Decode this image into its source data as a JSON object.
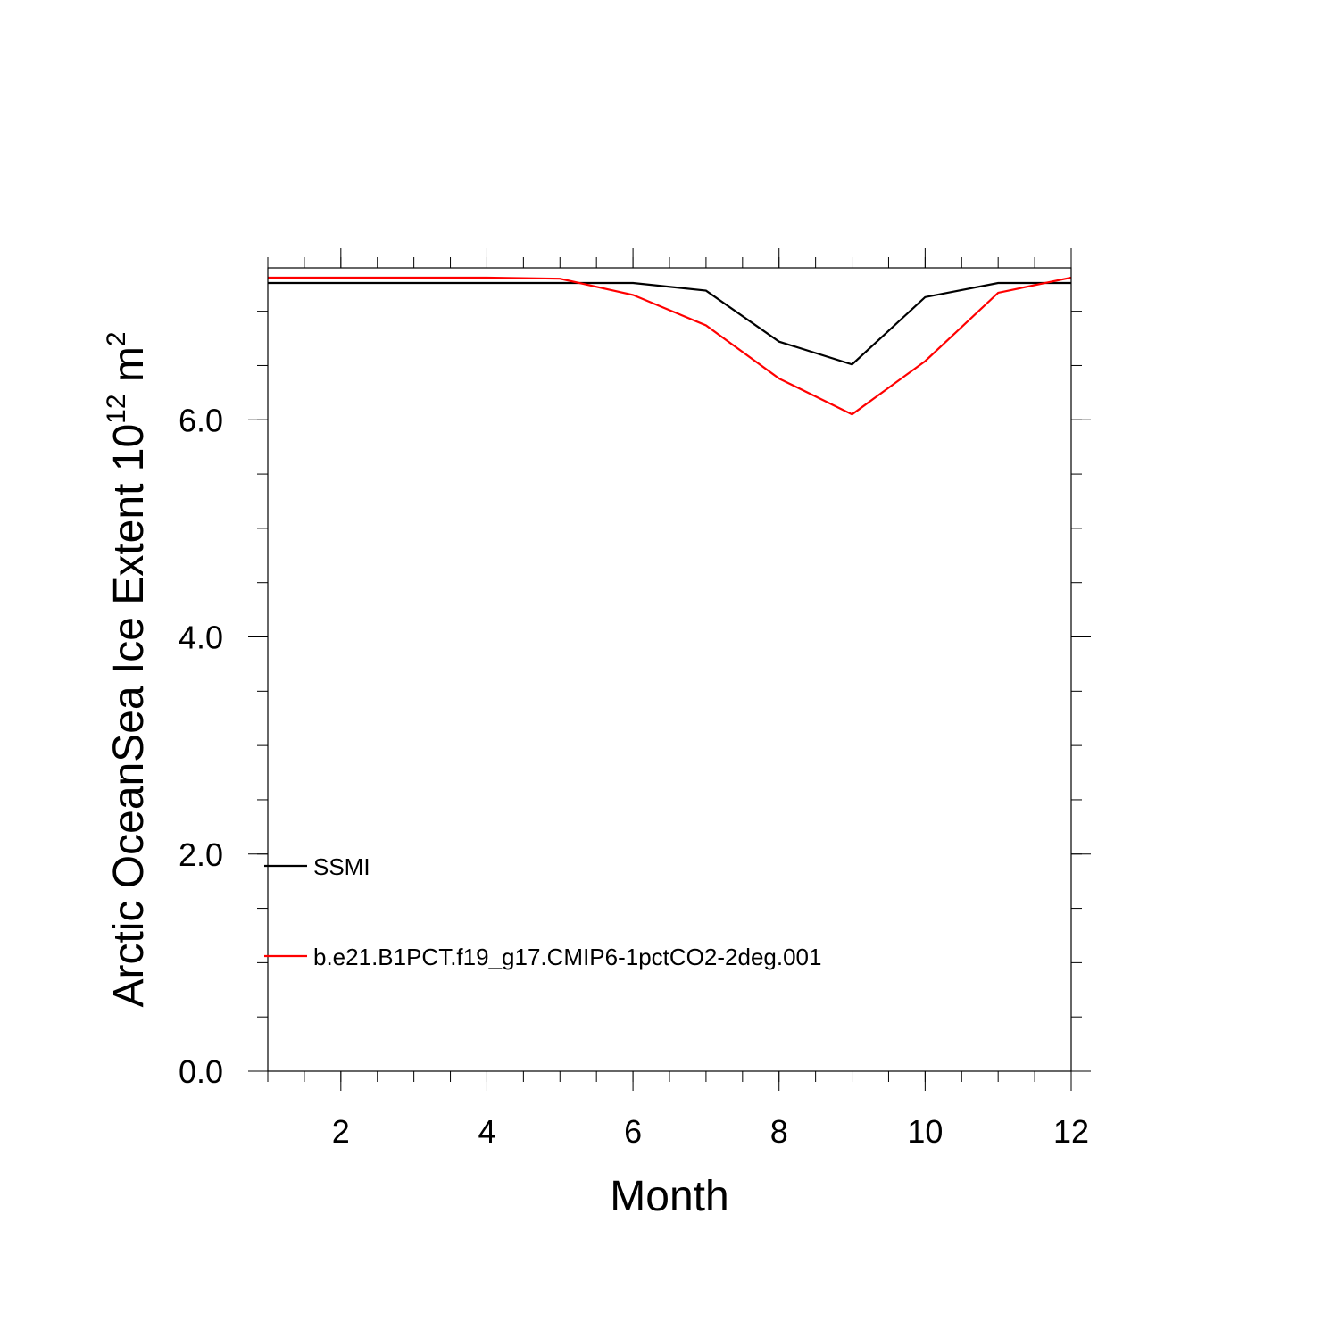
{
  "chart_data": {
    "type": "line",
    "xlabel": "Month",
    "ylabel": {
      "prefix": "Arctic OceanSea Ice Extent 10",
      "exponent": "12",
      "unit": " m",
      "unit_exponent": "2"
    },
    "xlim": [
      1,
      12
    ],
    "ylim": [
      0,
      7.4
    ],
    "x_ticks": [
      2,
      4,
      6,
      8,
      10,
      12
    ],
    "x_tick_labels": [
      "2",
      "4",
      "6",
      "8",
      "10",
      "12"
    ],
    "y_ticks": [
      0,
      2,
      4,
      6
    ],
    "y_tick_labels": [
      "0.0",
      "2.0",
      "4.0",
      "6.0"
    ],
    "grid": false,
    "legend_placement": "lower-left inside",
    "x": [
      1,
      2,
      3,
      4,
      5,
      6,
      7,
      8,
      9,
      10,
      11,
      12
    ],
    "series": [
      {
        "name": "SSMI",
        "color": "#000000",
        "values": [
          7.26,
          7.26,
          7.26,
          7.26,
          7.26,
          7.26,
          7.19,
          6.72,
          6.51,
          7.13,
          7.26,
          7.26
        ]
      },
      {
        "name": "b.e21.B1PCT.f19_g17.CMIP6-1pctCO2-2deg.001",
        "color": "#ff0000",
        "values": [
          7.31,
          7.31,
          7.31,
          7.31,
          7.3,
          7.15,
          6.87,
          6.38,
          6.05,
          6.54,
          7.17,
          7.31
        ]
      }
    ]
  }
}
